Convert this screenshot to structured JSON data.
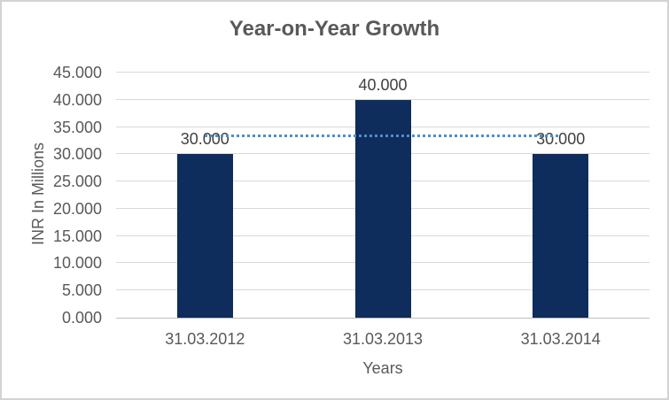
{
  "chart_data": {
    "type": "bar",
    "title": "Year-on-Year Growth",
    "categories": [
      "31.03.2012",
      "31.03.2013",
      "31.03.2014"
    ],
    "values": [
      30,
      40,
      30
    ],
    "data_labels": [
      "30.000",
      "40.000",
      "30.000"
    ],
    "xlabel": "Years",
    "ylabel": "INR In Millions",
    "ylim": [
      0,
      45
    ],
    "ytick_step": 5,
    "ytick_labels": [
      "0.000",
      "5.000",
      "10.000",
      "15.000",
      "20.000",
      "25.000",
      "30.000",
      "35.000",
      "40.000",
      "45.000"
    ],
    "grid": true,
    "legend": false,
    "average_line": {
      "style": "dotted",
      "value": 33.333
    }
  },
  "colors": {
    "bar": "#0E2C5C",
    "average_line": "#4E8EC8",
    "gridline": "#D9D9D9",
    "axis_line": "#BFBFBF",
    "title_text": "#595959",
    "axis_text": "#595959",
    "data_label_text": "#404040",
    "chart_border": "#D3D3D3",
    "background": "#FFFFFF"
  }
}
